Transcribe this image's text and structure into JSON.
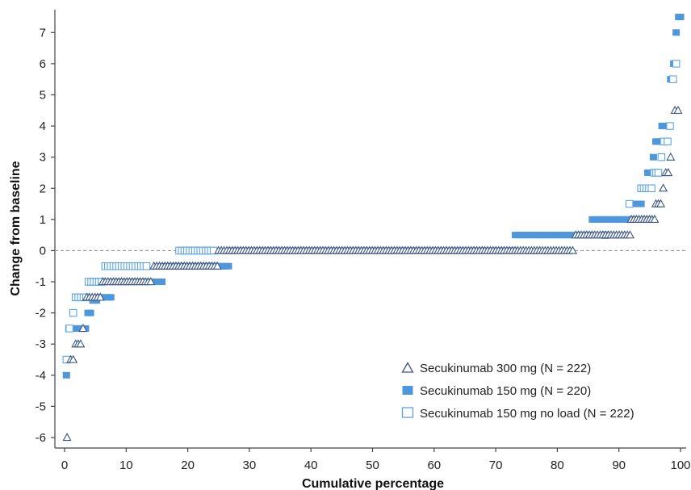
{
  "chart_data": {
    "type": "scatter",
    "xlabel": "Cumulative percentage",
    "ylabel": "Change from baseline",
    "xlim": [
      0,
      100
    ],
    "ylim": [
      -6.4,
      7.8
    ],
    "xticks": [
      0,
      10,
      20,
      30,
      40,
      50,
      60,
      70,
      80,
      90,
      100
    ],
    "yticks": [
      -6,
      -5,
      -4,
      -3,
      -2,
      -1,
      0,
      1,
      2,
      3,
      4,
      5,
      6,
      7
    ],
    "reference_line": {
      "y": 0,
      "style": "dashed",
      "color": "#9a9a9a"
    },
    "grid": false,
    "legend_position": "bottom-right",
    "series": [
      {
        "name": "Secukinumab 300 mg (N = 222)",
        "marker": "open-triangle",
        "color": "#3a5580",
        "runs": [
          {
            "y": -6,
            "x_start": 0.4,
            "x_end": 0.4
          },
          {
            "y": -3.5,
            "x_start": 1.0,
            "x_end": 1.4
          },
          {
            "y": -3,
            "x_start": 1.8,
            "x_end": 2.6
          },
          {
            "y": -2.5,
            "x_start": 3.0,
            "x_end": 3.2
          },
          {
            "y": -1.5,
            "x_start": 3.6,
            "x_end": 5.8
          },
          {
            "y": -1,
            "x_start": 6.2,
            "x_end": 14.0
          },
          {
            "y": -0.5,
            "x_start": 14.5,
            "x_end": 24.8
          },
          {
            "y": 0,
            "x_start": 25.0,
            "x_end": 82.5
          },
          {
            "y": 0.5,
            "x_start": 83.0,
            "x_end": 91.8
          },
          {
            "y": 1,
            "x_start": 92.0,
            "x_end": 95.8
          },
          {
            "y": 1.5,
            "x_start": 96.0,
            "x_end": 96.8
          },
          {
            "y": 2,
            "x_start": 97.2,
            "x_end": 97.2
          },
          {
            "y": 2.5,
            "x_start": 97.6,
            "x_end": 98.0
          },
          {
            "y": 3,
            "x_start": 98.4,
            "x_end": 98.4
          },
          {
            "y": 4.5,
            "x_start": 99.1,
            "x_end": 99.6
          }
        ]
      },
      {
        "name": "Secukinumab 150 mg (N = 220)",
        "marker": "filled-square",
        "color": "#4f97dd",
        "runs": [
          {
            "y": -4,
            "x_start": 0.3,
            "x_end": 0.3
          },
          {
            "y": -2.5,
            "x_start": 0.7,
            "x_end": 3.4
          },
          {
            "y": -2,
            "x_start": 3.8,
            "x_end": 4.2
          },
          {
            "y": -1.6,
            "x_start": 4.6,
            "x_end": 5.2
          },
          {
            "y": -1.5,
            "x_start": 5.6,
            "x_end": 7.5
          },
          {
            "y": -1,
            "x_start": 7.9,
            "x_end": 15.8
          },
          {
            "y": -0.5,
            "x_start": 16.2,
            "x_end": 26.6
          },
          {
            "y": 0,
            "x_start": 27.0,
            "x_end": 72.9
          },
          {
            "y": 0.5,
            "x_start": 73.2,
            "x_end": 85.3
          },
          {
            "y": 1,
            "x_start": 85.7,
            "x_end": 92.1
          },
          {
            "y": 1.5,
            "x_start": 92.5,
            "x_end": 93.6
          },
          {
            "y": 2,
            "x_start": 93.9,
            "x_end": 94.3
          },
          {
            "y": 2.5,
            "x_start": 94.7,
            "x_end": 95.2
          },
          {
            "y": 3,
            "x_start": 95.6,
            "x_end": 95.6
          },
          {
            "y": 3.5,
            "x_start": 96.0,
            "x_end": 96.7
          },
          {
            "y": 4,
            "x_start": 97.0,
            "x_end": 98.0
          },
          {
            "y": 5.5,
            "x_start": 98.4,
            "x_end": 98.6
          },
          {
            "y": 6,
            "x_start": 98.9,
            "x_end": 99.1
          },
          {
            "y": 7,
            "x_start": 99.3,
            "x_end": 99.3
          },
          {
            "y": 7.5,
            "x_start": 99.7,
            "x_end": 100.0
          }
        ]
      },
      {
        "name": "Secukinumab 150 mg no load (N = 222)",
        "marker": "open-square",
        "color": "#5aa4e6",
        "runs": [
          {
            "y": -3.5,
            "x_start": 0.3,
            "x_end": 0.3
          },
          {
            "y": -2.5,
            "x_start": 0.8,
            "x_end": 1.0
          },
          {
            "y": -2,
            "x_start": 1.4,
            "x_end": 1.4
          },
          {
            "y": -1.5,
            "x_start": 1.8,
            "x_end": 3.5
          },
          {
            "y": -1,
            "x_start": 3.9,
            "x_end": 6.0
          },
          {
            "y": -0.5,
            "x_start": 6.6,
            "x_end": 13.3
          },
          {
            "y": 0,
            "x_start": 18.6,
            "x_end": 24.2
          },
          {
            "y": 0.5,
            "x_start": 87.8,
            "x_end": 87.8
          },
          {
            "y": 1.5,
            "x_start": 91.7,
            "x_end": 91.7
          },
          {
            "y": 2,
            "x_start": 93.6,
            "x_end": 95.3
          },
          {
            "y": 2.5,
            "x_start": 95.7,
            "x_end": 96.4
          },
          {
            "y": 3,
            "x_start": 96.9,
            "x_end": 96.9
          },
          {
            "y": 3.5,
            "x_start": 97.3,
            "x_end": 97.9
          },
          {
            "y": 4,
            "x_start": 98.3,
            "x_end": 98.3
          },
          {
            "y": 5.5,
            "x_start": 98.8,
            "x_end": 98.8
          },
          {
            "y": 6,
            "x_start": 99.3,
            "x_end": 99.3
          }
        ]
      }
    ]
  }
}
